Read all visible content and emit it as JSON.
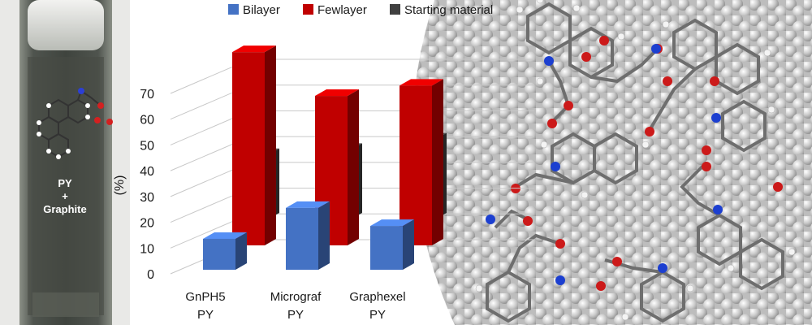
{
  "vial": {
    "line1": "PY",
    "line2": "+",
    "line3": "Graphite"
  },
  "chart_data": {
    "type": "bar",
    "categories": [
      [
        "GnPH5",
        "PY"
      ],
      [
        "Micrograf",
        "PY"
      ],
      [
        "Graphexel",
        "PY"
      ]
    ],
    "series": [
      {
        "name": "Bilayer",
        "values": [
          12,
          24,
          17
        ],
        "color": "#4472c4"
      },
      {
        "name": "Fewlayer",
        "values": [
          75,
          58,
          62
        ],
        "color": "#c00000"
      },
      {
        "name": "Starting material",
        "values": [
          25,
          27,
          31
        ],
        "color": "#404040"
      }
    ],
    "xlabel": "",
    "ylabel": "(%)",
    "yticks": [
      "0",
      "10",
      "20",
      "30",
      "40",
      "50",
      "60",
      "70"
    ],
    "ylim": [
      0,
      70
    ],
    "legend_position": "top",
    "grid": true
  }
}
